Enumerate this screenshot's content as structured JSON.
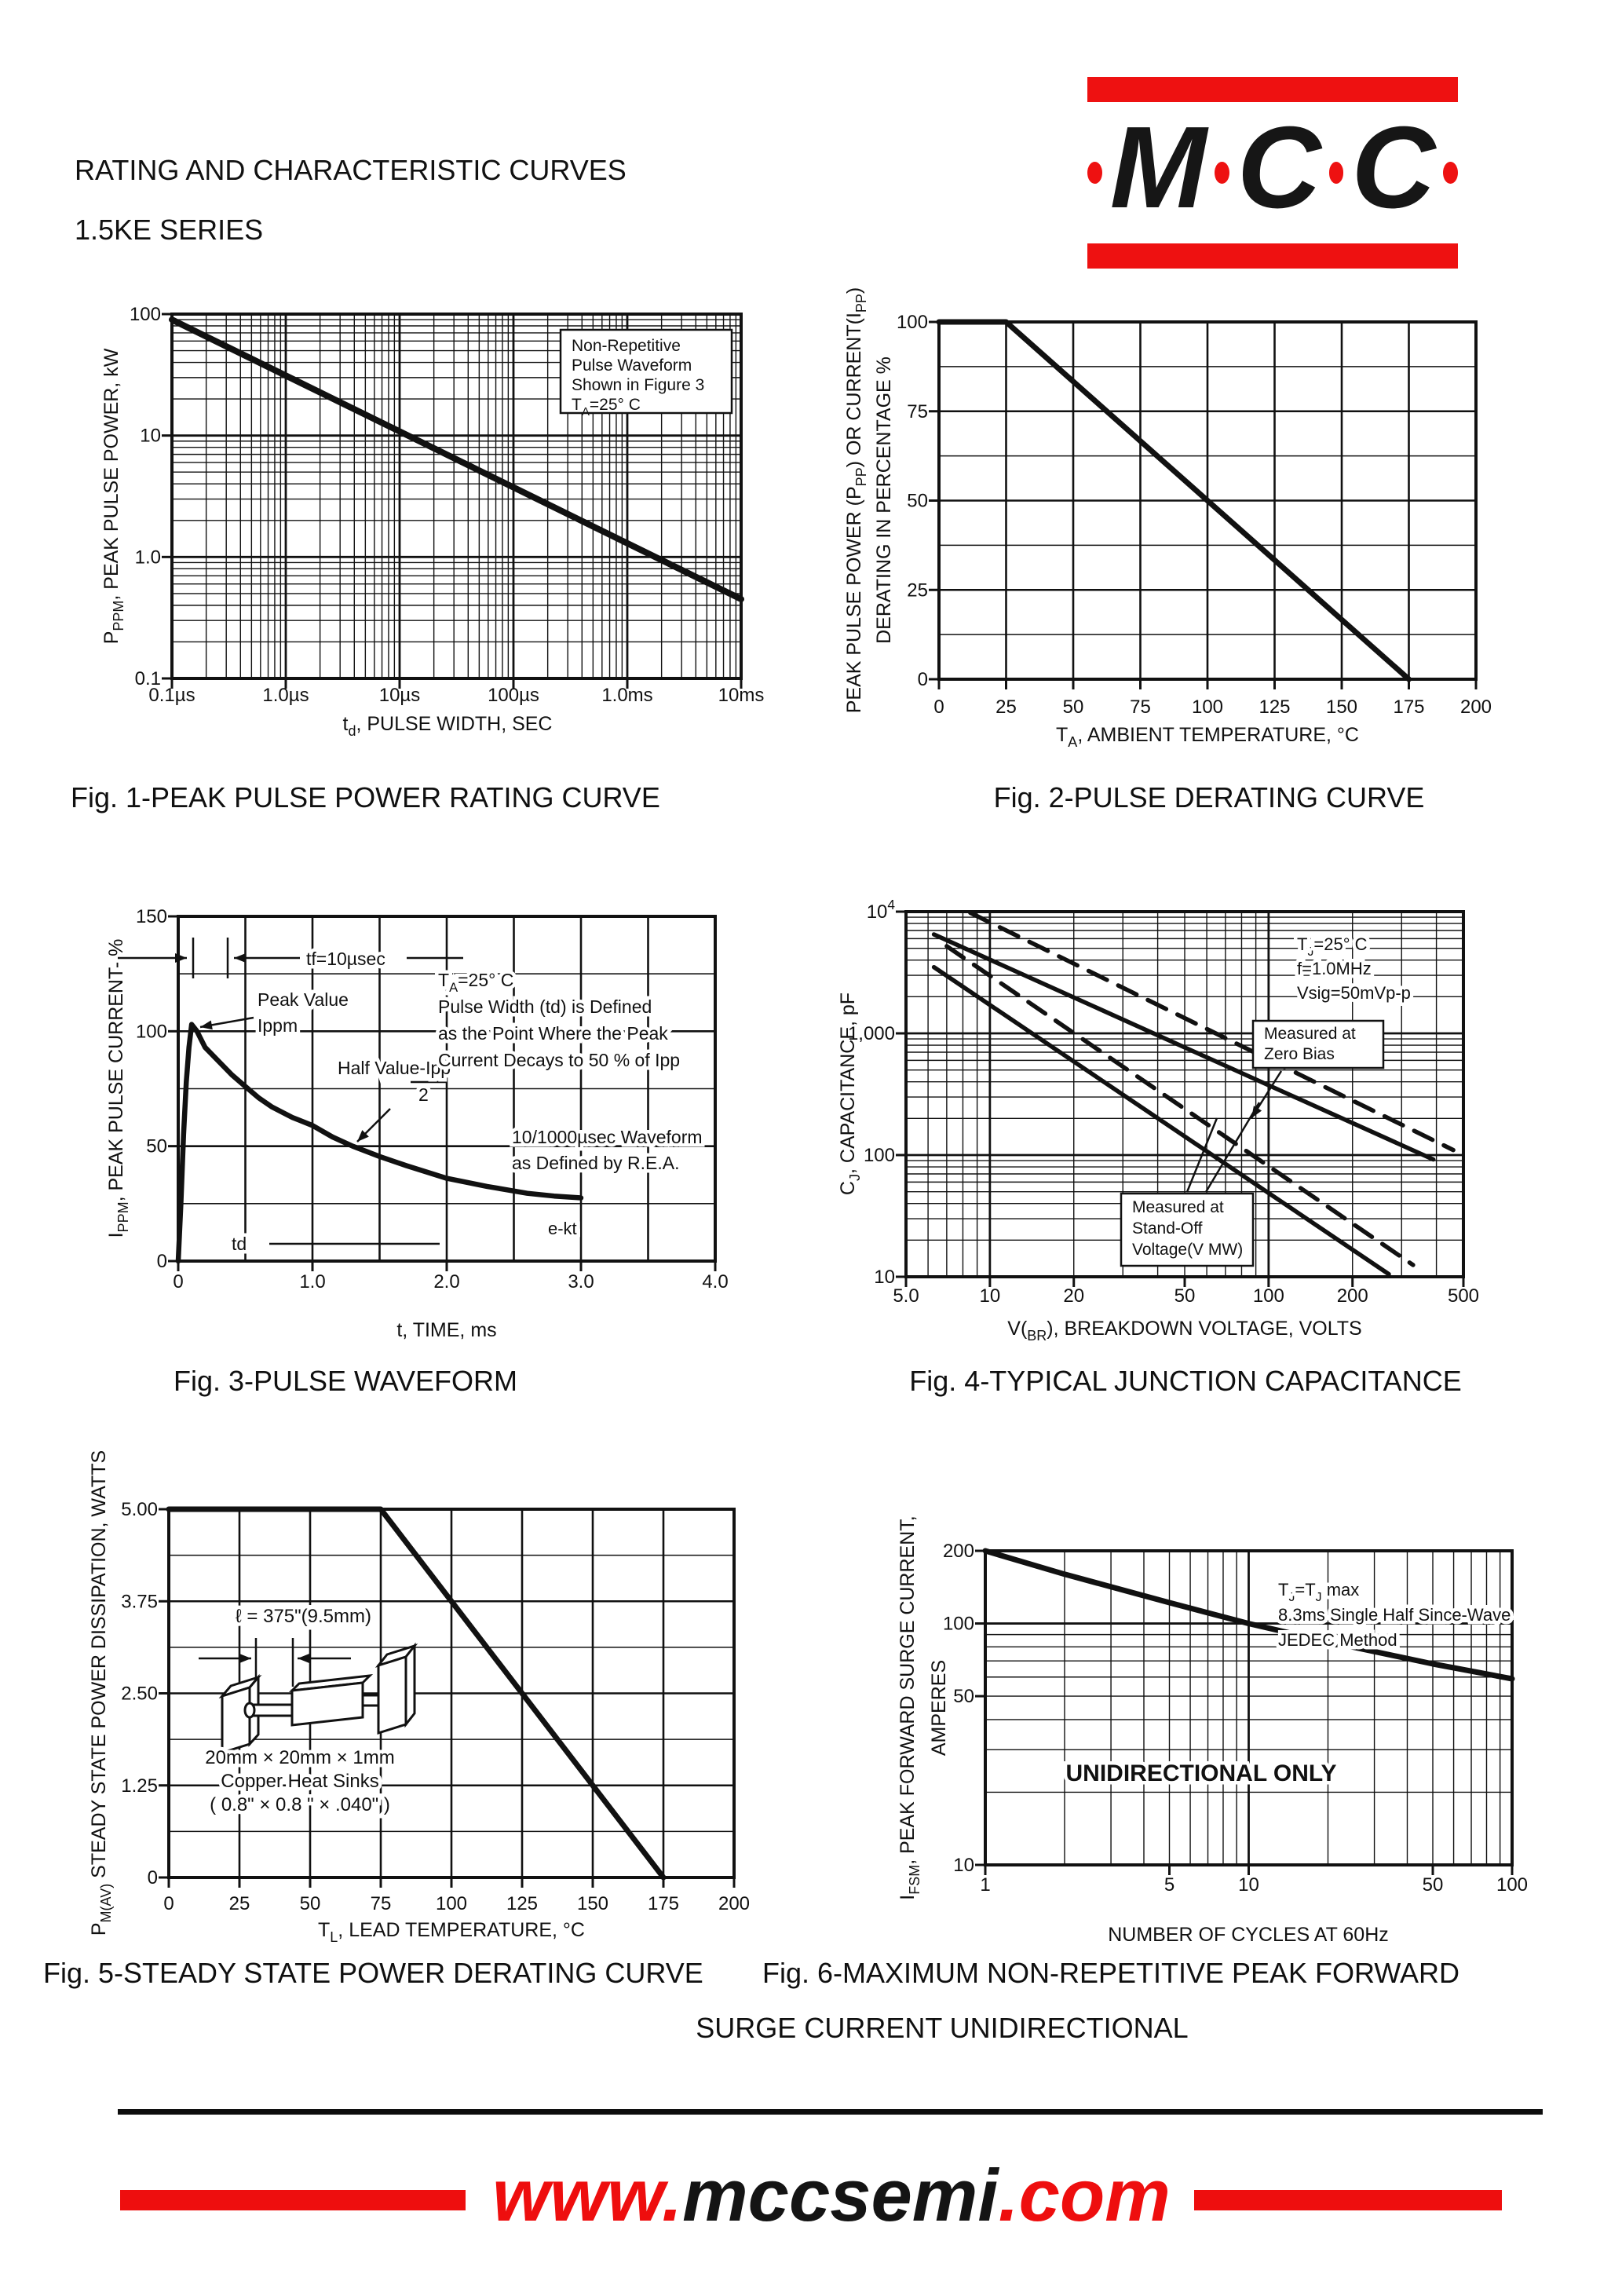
{
  "page": {
    "background": "#ffffff",
    "ink": "#111111",
    "accent_red": "#ee1111"
  },
  "header": {
    "title": "RATING AND CHARACTERISTIC CURVES",
    "series": "1.5KE SERIES"
  },
  "logo": {
    "letters": [
      "M",
      "C",
      "C"
    ]
  },
  "footer": {
    "www": "www.",
    "domain": "mccsemi",
    "com": ".com"
  },
  "chart_data": [
    {
      "id": "fig1",
      "type": "line",
      "caption": "Fig. 1-PEAK PULSE POWER RATING CURVE",
      "x_axis": {
        "scale": "log",
        "min": 1e-07,
        "max": 0.01,
        "label": [
          [
            {
              "t": "t"
            },
            {
              "t": "d",
              "m": "sub"
            },
            {
              "t": ", PULSE WIDTH, SEC"
            }
          ]
        ],
        "ticks": [
          {
            "v": 1e-07,
            "t": "0.1µs"
          },
          {
            "v": 1e-06,
            "t": "1.0µs"
          },
          {
            "v": 1e-05,
            "t": "10µs"
          },
          {
            "v": 0.0001,
            "t": "100µs"
          },
          {
            "v": 0.001,
            "t": "1.0ms"
          },
          {
            "v": 0.01,
            "t": "10ms"
          }
        ]
      },
      "y_axis": {
        "scale": "log",
        "min": 0.1,
        "max": 100,
        "label": [
          [
            {
              "t": "P"
            },
            {
              "t": "PPM",
              "m": "sub"
            },
            {
              "t": ", PEAK PULSE POWER, kW"
            }
          ]
        ],
        "ticks": [
          {
            "v": 100,
            "t": "100"
          },
          {
            "v": 10,
            "t": "10"
          },
          {
            "v": 1,
            "t": "1.0"
          },
          {
            "v": 0.1,
            "t": "0.1"
          }
        ]
      },
      "series": [
        {
          "name": "peak-pulse-power",
          "style": "solid",
          "points": [
            [
              1e-07,
              90
            ],
            [
              0.01,
              0.45
            ]
          ]
        }
      ],
      "annotations": [
        {
          "lines": [
            "Non-Repetitive",
            "Pulse Waveform",
            "Shown in Figure 3",
            [
              {
                "t": "T"
              },
              {
                "t": "A",
                "m": "sub"
              },
              {
                "t": "=25° C"
              }
            ]
          ]
        }
      ]
    },
    {
      "id": "fig2",
      "type": "line",
      "caption": "Fig. 2-PULSE DERATING CURVE",
      "x_axis": {
        "scale": "linear",
        "min": 0,
        "max": 200,
        "label": [
          [
            {
              "t": "T"
            },
            {
              "t": "A",
              "m": "sub"
            },
            {
              "t": ", AMBIENT   TEMPERATURE, °C"
            }
          ]
        ],
        "ticks": [
          {
            "v": 0,
            "t": "0"
          },
          {
            "v": 25,
            "t": "25"
          },
          {
            "v": 50,
            "t": "50"
          },
          {
            "v": 75,
            "t": "75"
          },
          {
            "v": 100,
            "t": "100"
          },
          {
            "v": 125,
            "t": "125"
          },
          {
            "v": 150,
            "t": "150"
          },
          {
            "v": 175,
            "t": "175"
          },
          {
            "v": 200,
            "t": "200"
          }
        ]
      },
      "y_axis": {
        "scale": "linear",
        "min": 0,
        "max": 100,
        "label": [
          [
            {
              "t": "PEAK PULSE POWER (P"
            },
            {
              "t": "PP",
              "m": "sub"
            },
            {
              "t": ") OR CURRENT(I"
            },
            {
              "t": "PP",
              "m": "sub"
            },
            {
              "t": ")"
            }
          ],
          [
            {
              "t": "DERATING IN PERCENTAGE %"
            }
          ]
        ],
        "ticks": [
          {
            "v": 0,
            "t": "0"
          },
          {
            "v": 25,
            "t": "25"
          },
          {
            "v": 50,
            "t": "50"
          },
          {
            "v": 75,
            "t": "75"
          },
          {
            "v": 100,
            "t": "100"
          }
        ]
      },
      "series": [
        {
          "name": "derating",
          "style": "solid",
          "points": [
            [
              0,
              100
            ],
            [
              25,
              100
            ],
            [
              175,
              0
            ]
          ]
        }
      ],
      "annotations": []
    },
    {
      "id": "fig3",
      "type": "line",
      "caption": "Fig. 3-PULSE WAVEFORM",
      "x_axis": {
        "scale": "linear",
        "min": 0,
        "max": 4,
        "label": [
          [
            {
              "t": "t, TIME, ms"
            }
          ]
        ],
        "ticks": [
          {
            "v": 0,
            "t": "0"
          },
          {
            "v": 1,
            "t": "1.0"
          },
          {
            "v": 2,
            "t": "2.0"
          },
          {
            "v": 3,
            "t": "3.0"
          },
          {
            "v": 4,
            "t": "4.0"
          }
        ]
      },
      "y_axis": {
        "scale": "linear",
        "min": 0,
        "max": 150,
        "label": [
          [
            {
              "t": "I"
            },
            {
              "t": "PPM",
              "m": "sub"
            },
            {
              "t": ", PEAK PULSE CURRENT- %"
            }
          ]
        ],
        "ticks": [
          {
            "v": 0,
            "t": "0"
          },
          {
            "v": 50,
            "t": "50"
          },
          {
            "v": 100,
            "t": "100"
          },
          {
            "v": 150,
            "t": "150"
          }
        ]
      },
      "series": [
        {
          "name": "pulse-waveform",
          "style": "solid",
          "points": [
            [
              0,
              0
            ],
            [
              0.02,
              25
            ],
            [
              0.04,
              55
            ],
            [
              0.06,
              78
            ],
            [
              0.08,
              93
            ],
            [
              0.1,
              103
            ],
            [
              0.14,
              100
            ],
            [
              0.2,
              93
            ],
            [
              0.3,
              87
            ],
            [
              0.4,
              81
            ],
            [
              0.5,
              76
            ],
            [
              0.6,
              71
            ],
            [
              0.7,
              67
            ],
            [
              0.85,
              62.5
            ],
            [
              1.0,
              59
            ],
            [
              1.15,
              54
            ],
            [
              1.3,
              50
            ],
            [
              1.5,
              45.5
            ],
            [
              1.7,
              41.5
            ],
            [
              2.0,
              36
            ],
            [
              2.3,
              32.5
            ],
            [
              2.6,
              29.5
            ],
            [
              2.8,
              28.3
            ],
            [
              3.0,
              27.5
            ]
          ]
        }
      ],
      "annotations": [
        {
          "lines": [
            "tf=10µsec"
          ]
        },
        {
          "lines": [
            "Peak Value",
            "Ippm"
          ]
        },
        {
          "lines": [
            "Half Value-Ipp"
          ]
        },
        {
          "lines": [
            "2"
          ]
        },
        {
          "lines": [
            [
              {
                "t": "T"
              },
              {
                "t": "A",
                "m": "sub"
              },
              {
                "t": "=25° C"
              }
            ],
            "Pulse Width (td) is Defined",
            "as the Point Where the Peak",
            "Current Decays to 50 % of Ipp"
          ]
        },
        {
          "lines": [
            "10/1000µsec Waveform",
            "as Defined by R.E.A."
          ]
        },
        {
          "lines": [
            "e-kt"
          ]
        },
        {
          "lines": [
            "td"
          ]
        }
      ]
    },
    {
      "id": "fig4",
      "type": "line",
      "caption": "Fig. 4-TYPICAL JUNCTION CAPACITANCE",
      "x_axis": {
        "scale": "log",
        "min": 5,
        "max": 500,
        "label": [
          [
            {
              "t": "V("
            },
            {
              "t": "BR",
              "m": "sub"
            },
            {
              "t": "), BREAKDOWN  VOLTAGE, VOLTS"
            }
          ]
        ],
        "ticks": [
          {
            "v": 5,
            "t": "5.0"
          },
          {
            "v": 10,
            "t": "10"
          },
          {
            "v": 20,
            "t": "20"
          },
          {
            "v": 50,
            "t": "50"
          },
          {
            "v": 100,
            "t": "100"
          },
          {
            "v": 200,
            "t": "200"
          },
          {
            "v": 500,
            "t": "500"
          }
        ]
      },
      "y_axis": {
        "scale": "log",
        "min": 10,
        "max": 10000,
        "label": [
          [
            {
              "t": "C"
            },
            {
              "t": "J",
              "m": "sub"
            },
            {
              "t": ", CAPACITANCE, pF"
            }
          ]
        ],
        "ticks": [
          {
            "v": 10000,
            "t": [
              {
                "t": "10"
              },
              {
                "t": "4",
                "m": "sup"
              }
            ]
          },
          {
            "v": 1000,
            "t": "1,000"
          },
          {
            "v": 100,
            "t": "100"
          },
          {
            "v": 10,
            "t": "10"
          }
        ]
      },
      "series": [
        {
          "name": "zero-bias-upper",
          "style": "solid",
          "points": [
            [
              6.3,
              6500
            ],
            [
              390,
              92
            ]
          ]
        },
        {
          "name": "standoff-lower",
          "style": "solid",
          "points": [
            [
              6.3,
              3500
            ],
            [
              270,
              10.5
            ]
          ]
        },
        {
          "name": "dashed-upper",
          "style": "dashed",
          "points": [
            [
              8.5,
              9800
            ],
            [
              460,
              110
            ]
          ]
        },
        {
          "name": "dashed-lower",
          "style": "dashed",
          "points": [
            [
              7.0,
              5200
            ],
            [
              330,
              12.5
            ]
          ]
        }
      ],
      "annotations": [
        {
          "lines": [
            [
              {
                "t": "T"
              },
              {
                "t": "J",
                "m": "sub"
              },
              {
                "t": "=25° C"
              }
            ],
            "f=1.0MHz",
            "Vsig=50mVp-p"
          ]
        },
        {
          "lines": [
            "Measured at",
            "Zero Bias"
          ]
        },
        {
          "lines": [
            "Measured at",
            "Stand-Off",
            "Voltage(V MW)"
          ]
        }
      ]
    },
    {
      "id": "fig5",
      "type": "line",
      "caption": "Fig. 5-STEADY STATE POWER DERATING CURVE",
      "x_axis": {
        "scale": "linear",
        "min": 0,
        "max": 200,
        "label": [
          [
            {
              "t": "T"
            },
            {
              "t": "L",
              "m": "sub"
            },
            {
              "t": ", LEAD  TEMPERATURE, °C"
            }
          ]
        ],
        "ticks": [
          {
            "v": 0,
            "t": "0"
          },
          {
            "v": 25,
            "t": "25"
          },
          {
            "v": 50,
            "t": "50"
          },
          {
            "v": 75,
            "t": "75"
          },
          {
            "v": 100,
            "t": "100"
          },
          {
            "v": 125,
            "t": "125"
          },
          {
            "v": 150,
            "t": "150"
          },
          {
            "v": 175,
            "t": "175"
          },
          {
            "v": 200,
            "t": "200"
          }
        ]
      },
      "y_axis": {
        "scale": "linear",
        "min": 0,
        "max": 5,
        "label": [
          [
            {
              "t": "P"
            },
            {
              "t": "M(AV)",
              "m": "sub"
            },
            {
              "t": " STEADY  STATE  POWER  DISSIPATION, WATTS"
            }
          ]
        ],
        "ticks": [
          {
            "v": 0,
            "t": "0"
          },
          {
            "v": 1.25,
            "t": "1.25"
          },
          {
            "v": 2.5,
            "t": "2.50"
          },
          {
            "v": 3.75,
            "t": "3.75"
          },
          {
            "v": 5,
            "t": "5.00"
          }
        ]
      },
      "series": [
        {
          "name": "power-derating",
          "style": "solid",
          "points": [
            [
              0,
              5
            ],
            [
              75,
              5
            ],
            [
              175,
              0
            ]
          ]
        }
      ],
      "annotations": [
        {
          "lines": [
            "ℓ = 375\"(9.5mm)"
          ]
        },
        {
          "lines": [
            "20mm × 20mm × 1mm",
            "Copper Heat Sinks",
            "( 0.8\" × 0.8 \" × .040\" )"
          ]
        }
      ]
    },
    {
      "id": "fig6",
      "type": "line",
      "caption": "Fig. 6-MAXIMUM NON-REPETITIVE PEAK FORWARD",
      "caption2": "SURGE CURRENT UNIDIRECTIONAL",
      "x_axis": {
        "scale": "log",
        "min": 1,
        "max": 100,
        "label": [
          [
            {
              "t": "NUMBER  OF  CYCLES  AT  60Hz"
            }
          ]
        ],
        "ticks": [
          {
            "v": 1,
            "t": "1"
          },
          {
            "v": 5,
            "t": "5"
          },
          {
            "v": 10,
            "t": "10"
          },
          {
            "v": 50,
            "t": "50"
          },
          {
            "v": 100,
            "t": "100"
          }
        ]
      },
      "y_axis": {
        "scale": "log",
        "min": 10,
        "max": 200,
        "label": [
          [
            {
              "t": "I"
            },
            {
              "t": "FSM",
              "m": "sub"
            },
            {
              "t": ", PEAK  FORWARD  SURGE  CURRENT,"
            }
          ],
          [
            {
              "t": "AMPERES"
            }
          ]
        ],
        "ticks": [
          {
            "v": 10,
            "t": "10"
          },
          {
            "v": 50,
            "t": "50"
          },
          {
            "v": 100,
            "t": "100"
          },
          {
            "v": 200,
            "t": "200"
          }
        ]
      },
      "series": [
        {
          "name": "surge-current",
          "style": "solid",
          "points": [
            [
              1,
              200
            ],
            [
              2,
              160
            ],
            [
              5,
              122
            ],
            [
              10,
              100
            ],
            [
              20,
              84
            ],
            [
              50,
              68
            ],
            [
              100,
              59
            ]
          ]
        }
      ],
      "annotations": [
        {
          "lines": [
            [
              {
                "t": "T"
              },
              {
                "t": "J",
                "m": "sub"
              },
              {
                "t": "=T"
              },
              {
                "t": "J",
                "m": "sub"
              },
              {
                "t": " max"
              }
            ],
            "8.3ms Single Half Since-Wave",
            "JEDEC Method"
          ]
        },
        {
          "lines": [
            "UNIDIRECTIONAL ONLY"
          ]
        }
      ]
    }
  ],
  "captions_note": "captions are bound from chart_data entries"
}
